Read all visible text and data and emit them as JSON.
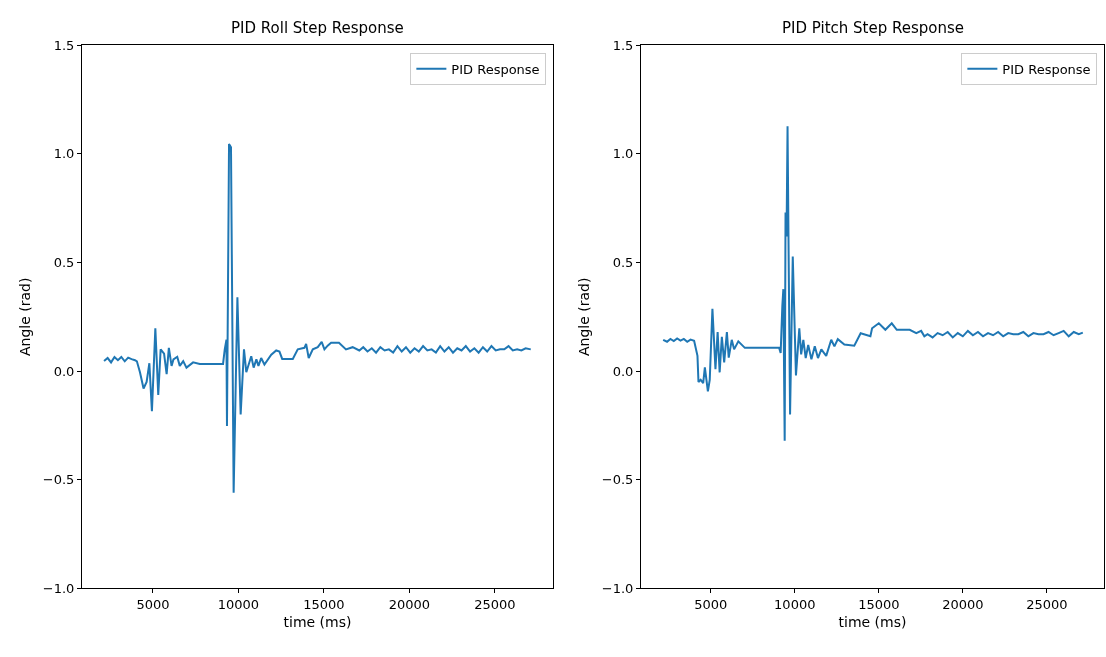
{
  "chart_data": [
    {
      "type": "line",
      "title": "PID Roll Step Response",
      "xlabel": "time (ms)",
      "ylabel": "Angle (rad)",
      "xlim": [
        850,
        28400
      ],
      "ylim": [
        -1.0,
        1.5
      ],
      "xticks": [
        5000,
        10000,
        15000,
        20000,
        25000
      ],
      "yticks": [
        {
          "value": -1.0,
          "label": "−1.0"
        },
        {
          "value": -0.5,
          "label": "−0.5"
        },
        {
          "value": 0.0,
          "label": "0.0"
        },
        {
          "value": 0.5,
          "label": "0.5"
        },
        {
          "value": 1.0,
          "label": "1.0"
        },
        {
          "value": 1.5,
          "label": "1.5"
        }
      ],
      "legend": "top right",
      "marker": "none",
      "line_style": "solid",
      "series": [
        {
          "name": "PID Response",
          "color": "#1f77b4",
          "x": [
            2140,
            2350,
            2550,
            2750,
            2950,
            3150,
            3350,
            3550,
            3750,
            3950,
            4060,
            4240,
            4450,
            4630,
            4790,
            4940,
            5140,
            5310,
            5450,
            5650,
            5800,
            5930,
            6090,
            6200,
            6420,
            6570,
            6770,
            6960,
            7350,
            7740,
            9100,
            9200,
            9300,
            9330,
            9450,
            9565,
            9720,
            9940,
            10130,
            10325,
            10460,
            10750,
            10890,
            11050,
            11170,
            11330,
            11520,
            11920,
            12210,
            12400,
            12560,
            13180,
            13470,
            13860,
            13960,
            14110,
            14350,
            14640,
            14870,
            15030,
            15220,
            15420,
            15880,
            16290,
            16680,
            17070,
            17300,
            17550,
            17800,
            18050,
            18300,
            18550,
            18800,
            19050,
            19300,
            19550,
            19800,
            20050,
            20300,
            20550,
            20800,
            21050,
            21300,
            21550,
            21800,
            22050,
            22300,
            22550,
            22800,
            23050,
            23300,
            23550,
            23800,
            24050,
            24300,
            24550,
            24800,
            25050,
            25300,
            25550,
            25800,
            26050,
            26300,
            26550,
            26800,
            27100
          ],
          "values": [
            0.046,
            0.06,
            0.04,
            0.065,
            0.05,
            0.065,
            0.045,
            0.062,
            0.055,
            0.05,
            0.045,
            -0.005,
            -0.08,
            -0.05,
            0.036,
            -0.185,
            0.197,
            -0.11,
            0.1,
            0.08,
            -0.014,
            0.107,
            0.024,
            0.054,
            0.066,
            0.024,
            0.046,
            0.016,
            0.04,
            0.033,
            0.033,
            0.1,
            0.144,
            -0.253,
            1.045,
            1.03,
            -0.56,
            0.34,
            -0.2,
            0.1,
            -0.005,
            0.068,
            0.016,
            0.054,
            0.024,
            0.06,
            0.03,
            0.075,
            0.095,
            0.09,
            0.056,
            0.056,
            0.1,
            0.107,
            0.125,
            0.06,
            0.1,
            0.11,
            0.134,
            0.1,
            0.117,
            0.13,
            0.13,
            0.1,
            0.11,
            0.095,
            0.11,
            0.09,
            0.105,
            0.085,
            0.11,
            0.095,
            0.1,
            0.085,
            0.115,
            0.09,
            0.11,
            0.085,
            0.105,
            0.09,
            0.115,
            0.095,
            0.1,
            0.085,
            0.115,
            0.09,
            0.11,
            0.085,
            0.105,
            0.095,
            0.115,
            0.09,
            0.105,
            0.085,
            0.11,
            0.09,
            0.115,
            0.095,
            0.1,
            0.1,
            0.115,
            0.095,
            0.1,
            0.095,
            0.105,
            0.1
          ]
        }
      ]
    },
    {
      "type": "line",
      "title": "PID Pitch Step Response",
      "xlabel": "time (ms)",
      "ylabel": "Angle (rad)",
      "xlim": [
        850,
        28400
      ],
      "ylim": [
        -1.0,
        1.5
      ],
      "xticks": [
        5000,
        10000,
        15000,
        20000,
        25000
      ],
      "yticks": [
        {
          "value": -1.0,
          "label": "−1.0"
        },
        {
          "value": -0.5,
          "label": "−0.5"
        },
        {
          "value": 0.0,
          "label": "0.0"
        },
        {
          "value": 0.5,
          "label": "0.5"
        },
        {
          "value": 1.0,
          "label": "1.0"
        },
        {
          "value": 1.5,
          "label": "1.5"
        }
      ],
      "legend": "top right",
      "marker": "none",
      "line_style": "solid",
      "series": [
        {
          "name": "PID Response",
          "color": "#1f77b4",
          "x": [
            2170,
            2400,
            2600,
            2800,
            3000,
            3200,
            3400,
            3600,
            3800,
            4010,
            4210,
            4270,
            4400,
            4550,
            4650,
            4830,
            4940,
            5100,
            5280,
            5410,
            5530,
            5660,
            5800,
            5960,
            6070,
            6250,
            6390,
            6640,
            7030,
            7520,
            9070,
            9160,
            9260,
            9320,
            9400,
            9450,
            9510,
            9570,
            9630,
            9720,
            9880,
            10070,
            10270,
            10380,
            10510,
            10650,
            10800,
            10990,
            11190,
            11380,
            11580,
            11870,
            12170,
            12360,
            12560,
            12950,
            13540,
            13920,
            14500,
            14600,
            15000,
            15390,
            15770,
            16070,
            16840,
            17230,
            17520,
            17710,
            17900,
            18200,
            18500,
            18800,
            19100,
            19400,
            19700,
            20000,
            20300,
            20600,
            20900,
            21200,
            21500,
            21800,
            22100,
            22400,
            22700,
            23000,
            23300,
            23600,
            23900,
            24200,
            24500,
            24800,
            25100,
            25400,
            25700,
            26000,
            26300,
            26600,
            26900,
            27140
          ],
          "values": [
            0.144,
            0.135,
            0.148,
            0.138,
            0.15,
            0.14,
            0.148,
            0.135,
            0.145,
            0.14,
            0.07,
            -0.05,
            -0.04,
            -0.055,
            0.017,
            -0.093,
            -0.04,
            0.287,
            0.009,
            0.18,
            -0.006,
            0.158,
            0.04,
            0.18,
            0.062,
            0.144,
            0.1,
            0.137,
            0.107,
            0.107,
            0.107,
            0.084,
            0.3,
            0.377,
            -0.32,
            0.73,
            0.62,
            1.127,
            0.58,
            -0.2,
            0.527,
            -0.02,
            0.197,
            0.077,
            0.144,
            0.06,
            0.12,
            0.054,
            0.114,
            0.06,
            0.1,
            0.07,
            0.144,
            0.114,
            0.147,
            0.122,
            0.117,
            0.174,
            0.16,
            0.197,
            0.22,
            0.19,
            0.22,
            0.19,
            0.19,
            0.175,
            0.185,
            0.16,
            0.17,
            0.155,
            0.175,
            0.165,
            0.18,
            0.155,
            0.175,
            0.16,
            0.185,
            0.165,
            0.18,
            0.16,
            0.175,
            0.165,
            0.18,
            0.16,
            0.175,
            0.17,
            0.17,
            0.18,
            0.16,
            0.175,
            0.17,
            0.17,
            0.18,
            0.165,
            0.175,
            0.185,
            0.16,
            0.18,
            0.17,
            0.177
          ]
        }
      ]
    }
  ]
}
